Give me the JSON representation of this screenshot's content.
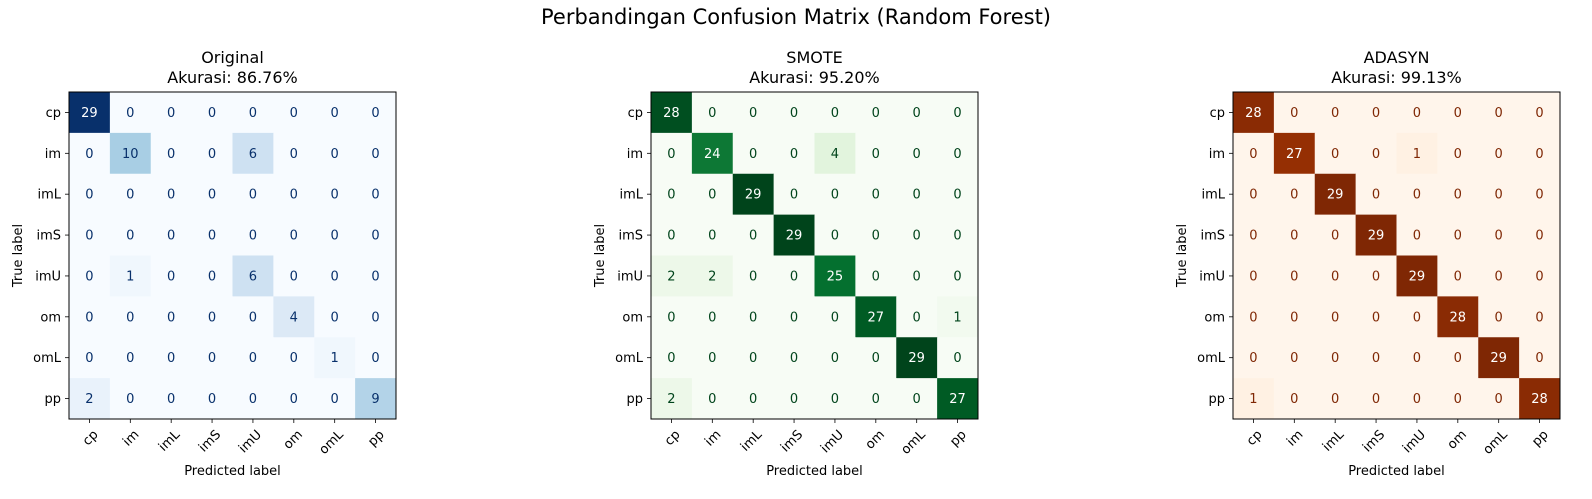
{
  "figure": {
    "suptitle": "Perbandingan Confusion Matrix (Random Forest)"
  },
  "chart_data": [
    {
      "type": "heatmap",
      "title": "Original",
      "subtitle": "Akurasi: 86.76%",
      "xlabel": "Predicted label",
      "ylabel": "True label",
      "colormap": "Blues",
      "vmin": 0,
      "vmax": 29,
      "classes": [
        "cp",
        "im",
        "imL",
        "imS",
        "imU",
        "om",
        "omL",
        "pp"
      ],
      "matrix": [
        [
          29,
          0,
          0,
          0,
          0,
          0,
          0,
          0
        ],
        [
          0,
          10,
          0,
          0,
          6,
          0,
          0,
          0
        ],
        [
          0,
          0,
          0,
          0,
          0,
          0,
          0,
          0
        ],
        [
          0,
          0,
          0,
          0,
          0,
          0,
          0,
          0
        ],
        [
          0,
          1,
          0,
          0,
          6,
          0,
          0,
          0
        ],
        [
          0,
          0,
          0,
          0,
          0,
          4,
          0,
          0
        ],
        [
          0,
          0,
          0,
          0,
          0,
          0,
          1,
          0
        ],
        [
          2,
          0,
          0,
          0,
          0,
          0,
          0,
          9
        ]
      ]
    },
    {
      "type": "heatmap",
      "title": "SMOTE",
      "subtitle": "Akurasi: 95.20%",
      "xlabel": "Predicted label",
      "ylabel": "True label",
      "colormap": "Greens",
      "vmin": 0,
      "vmax": 29,
      "classes": [
        "cp",
        "im",
        "imL",
        "imS",
        "imU",
        "om",
        "omL",
        "pp"
      ],
      "matrix": [
        [
          28,
          0,
          0,
          0,
          0,
          0,
          0,
          0
        ],
        [
          0,
          24,
          0,
          0,
          4,
          0,
          0,
          0
        ],
        [
          0,
          0,
          29,
          0,
          0,
          0,
          0,
          0
        ],
        [
          0,
          0,
          0,
          29,
          0,
          0,
          0,
          0
        ],
        [
          2,
          2,
          0,
          0,
          25,
          0,
          0,
          0
        ],
        [
          0,
          0,
          0,
          0,
          0,
          27,
          0,
          1
        ],
        [
          0,
          0,
          0,
          0,
          0,
          0,
          29,
          0
        ],
        [
          2,
          0,
          0,
          0,
          0,
          0,
          0,
          27
        ]
      ]
    },
    {
      "type": "heatmap",
      "title": "ADASYN",
      "subtitle": "Akurasi: 99.13%",
      "xlabel": "Predicted label",
      "ylabel": "True label",
      "colormap": "Oranges",
      "vmin": 0,
      "vmax": 29,
      "classes": [
        "cp",
        "im",
        "imL",
        "imS",
        "imU",
        "om",
        "omL",
        "pp"
      ],
      "matrix": [
        [
          28,
          0,
          0,
          0,
          0,
          0,
          0,
          0
        ],
        [
          0,
          27,
          0,
          0,
          1,
          0,
          0,
          0
        ],
        [
          0,
          0,
          29,
          0,
          0,
          0,
          0,
          0
        ],
        [
          0,
          0,
          0,
          29,
          0,
          0,
          0,
          0
        ],
        [
          0,
          0,
          0,
          0,
          29,
          0,
          0,
          0
        ],
        [
          0,
          0,
          0,
          0,
          0,
          28,
          0,
          0
        ],
        [
          0,
          0,
          0,
          0,
          0,
          0,
          29,
          0
        ],
        [
          1,
          0,
          0,
          0,
          0,
          0,
          0,
          28
        ]
      ]
    }
  ]
}
